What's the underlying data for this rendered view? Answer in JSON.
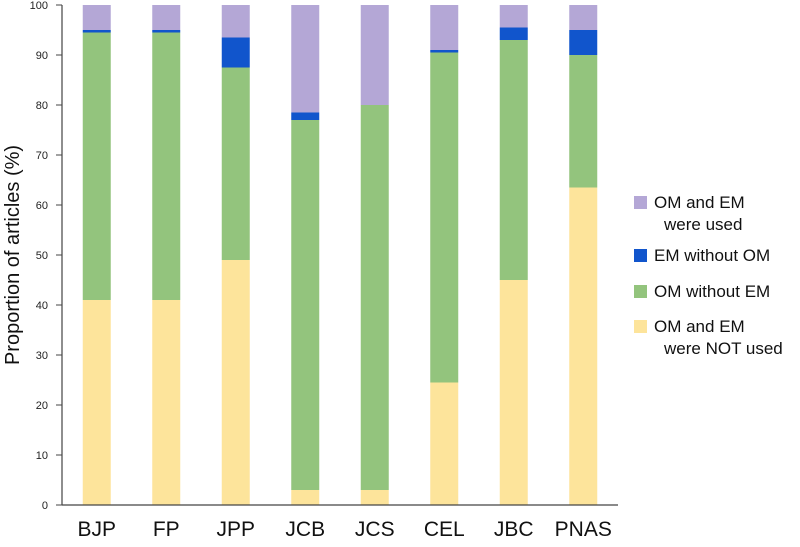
{
  "chart_data": {
    "type": "bar",
    "stacked": true,
    "title": "",
    "xlabel": "",
    "ylabel": "Proportion of articles (%)",
    "ylim": [
      0,
      100
    ],
    "yticks": [
      "0",
      "10",
      "20",
      "30",
      "40",
      "50",
      "60",
      "70",
      "80",
      "90",
      "100"
    ],
    "grid": false,
    "legend_position": "right",
    "categories": [
      "BJP",
      "FP",
      "JPP",
      "JCB",
      "JCS",
      "CEL",
      "JBC",
      "PNAS"
    ],
    "series": [
      {
        "name": "OM and EM were NOT used",
        "legend_lines": [
          "OM and EM",
          "were NOT used"
        ],
        "color": "#fde49b",
        "values": [
          41,
          41,
          49,
          3,
          3,
          24.5,
          45,
          63.5
        ]
      },
      {
        "name": "OM without EM",
        "legend_lines": [
          "OM without EM"
        ],
        "color": "#93c47d",
        "values": [
          53.5,
          53.5,
          38.5,
          74,
          77,
          66,
          48,
          26.5
        ]
      },
      {
        "name": "EM without OM",
        "legend_lines": [
          "EM without OM"
        ],
        "color": "#1155cc",
        "values": [
          0.5,
          0.5,
          6,
          1.5,
          0,
          0.5,
          2.5,
          5
        ]
      },
      {
        "name": "OM and EM were used",
        "legend_lines": [
          "OM and EM",
          "were used"
        ],
        "color": "#b4a7d6",
        "values": [
          5,
          5,
          6.5,
          21.5,
          20,
          9,
          4.5,
          5
        ]
      }
    ]
  }
}
